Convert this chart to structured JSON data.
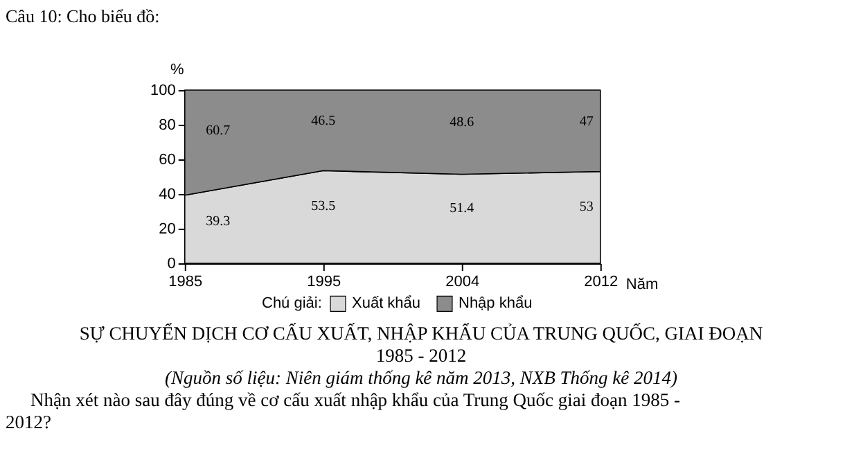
{
  "chart_data": {
    "type": "area",
    "stacked": true,
    "title": "SỰ CHUYỂN DỊCH CƠ CẤU XUẤT, NHẬP KHẨU CỦA TRUNG QUỐC, GIAI ĐOẠN 1985 - 2012",
    "ylabel": "%",
    "xlabel": "Năm",
    "legend_title": "Chú giải:",
    "categories": [
      "1985",
      "1995",
      "2004",
      "2012"
    ],
    "series": [
      {
        "name": "Xuất khẩu",
        "color": "#d9d9d9",
        "values": [
          39.3,
          53.5,
          51.4,
          53
        ]
      },
      {
        "name": "Nhập khẩu",
        "color": "#8c8c8c",
        "values": [
          60.7,
          46.5,
          48.6,
          47
        ]
      }
    ],
    "ylim": [
      0,
      100
    ],
    "yticks": [
      0,
      20,
      40,
      60,
      80,
      100
    ],
    "data_labels": true,
    "grid": false,
    "legend": "bottom",
    "annotations": [
      "Câu 10: Cho biểu đồ:",
      "(Nguồn số liệu: Niên giám thống kê năm 2013, NXB Thống kê 2014)",
      "Nhận xét nào sau đây đúng về cơ cấu xuất nhập khẩu của Trung Quốc giai đoạn 1985 - 2012?"
    ]
  }
}
